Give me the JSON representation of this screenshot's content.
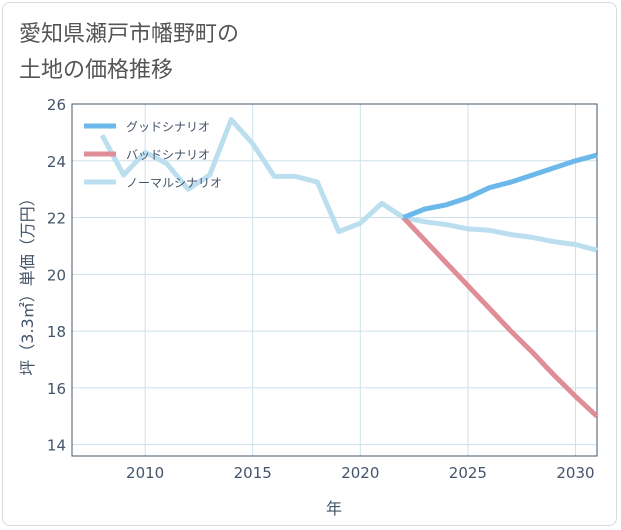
{
  "page": {
    "title": "愛知県瀬戸市幡野町の\n土地の価格推移"
  },
  "chart_data": {
    "type": "line",
    "xlabel": "年",
    "ylabel": "坪（3.3㎡）単価（万円）",
    "xlim": [
      2006.6,
      2031
    ],
    "ylim": [
      13.6,
      26
    ],
    "xticks": [
      2010,
      2015,
      2020,
      2025,
      2030
    ],
    "yticks": [
      14,
      16,
      18,
      20,
      22,
      24,
      26
    ],
    "grid": true,
    "legend_position": "top-left",
    "series": [
      {
        "name": "グッドシナリオ",
        "color": "#6cb8ea",
        "x": [
          2022,
          2023,
          2024,
          2025,
          2026,
          2027,
          2028,
          2029,
          2030,
          2031
        ],
        "y": [
          22.0,
          22.3,
          22.45,
          22.7,
          23.05,
          23.25,
          23.5,
          23.75,
          24.0,
          24.2
        ]
      },
      {
        "name": "バッドシナリオ",
        "color": "#df8e98",
        "x": [
          2022,
          2023,
          2024,
          2025,
          2026,
          2027,
          2028,
          2029,
          2030,
          2031
        ],
        "y": [
          22.0,
          21.2,
          20.4,
          19.6,
          18.8,
          18.0,
          17.25,
          16.45,
          15.7,
          15.0
        ]
      },
      {
        "name": "ノーマルシナリオ",
        "color": "#bcdff0",
        "x": [
          2008,
          2009,
          2010,
          2011,
          2012,
          2013,
          2014,
          2015,
          2016,
          2017,
          2018,
          2019,
          2020,
          2021,
          2022,
          2023,
          2024,
          2025,
          2026,
          2027,
          2028,
          2029,
          2030,
          2031
        ],
        "y": [
          24.9,
          23.5,
          24.3,
          23.9,
          23.0,
          23.5,
          25.45,
          24.6,
          23.45,
          23.45,
          23.25,
          21.5,
          21.8,
          22.5,
          22.0,
          21.85,
          21.75,
          21.6,
          21.55,
          21.4,
          21.3,
          21.15,
          21.05,
          20.85
        ]
      }
    ]
  }
}
